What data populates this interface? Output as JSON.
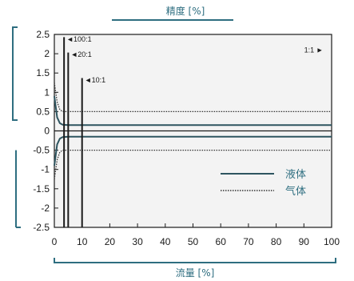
{
  "chart_data": {
    "type": "line",
    "title": "",
    "ylabel": "精度 [%]",
    "xlabel": "流量 [%]",
    "xlim": [
      0,
      100
    ],
    "ylim": [
      -2.5,
      2.5
    ],
    "xticks": [
      "0",
      "10",
      "20",
      "30",
      "40",
      "50",
      "60",
      "70",
      "80",
      "90",
      "100"
    ],
    "yticks": [
      "2.5",
      "2",
      "1.5",
      "1",
      "0.5",
      "0",
      "-0.5",
      "-1",
      "-1.5",
      "-2",
      "-2.5"
    ],
    "series": [
      {
        "name": "液体",
        "style": "solid",
        "x": [
          0,
          1,
          2,
          3,
          5,
          10,
          100
        ],
        "y_upper": [
          0.9,
          0.35,
          0.2,
          0.16,
          0.15,
          0.15,
          0.15
        ],
        "y_lower": [
          -0.9,
          -0.35,
          -0.2,
          -0.16,
          -0.15,
          -0.15,
          -0.15
        ]
      },
      {
        "name": "气体",
        "style": "dotted",
        "x": [
          0,
          1,
          2,
          3,
          5,
          10,
          100
        ],
        "y_upper": [
          1.25,
          0.75,
          0.55,
          0.5,
          0.5,
          0.5,
          0.5
        ],
        "y_lower": [
          -1.25,
          -0.75,
          -0.55,
          -0.5,
          -0.5,
          -0.5,
          -0.5
        ]
      }
    ],
    "vlines": [
      {
        "x": 3.5,
        "label": "◄100:1",
        "label_y": 2.38
      },
      {
        "x": 5,
        "label": "◄20:1",
        "label_y": 1.98
      },
      {
        "x": 10,
        "label": "◄10:1",
        "label_y": 1.32
      }
    ],
    "annotations": [
      {
        "text": "1:1 ►",
        "x": 97,
        "y": 2.1
      }
    ],
    "legend": {
      "placement": "bottom-right",
      "entries": [
        "液体",
        "气体"
      ]
    },
    "grid": false,
    "colors": {
      "axis_title": "#2e6e80",
      "liquid_line": "#2e5560",
      "gas_line": "#333333",
      "plot_bg": "#f3f3f3"
    }
  }
}
